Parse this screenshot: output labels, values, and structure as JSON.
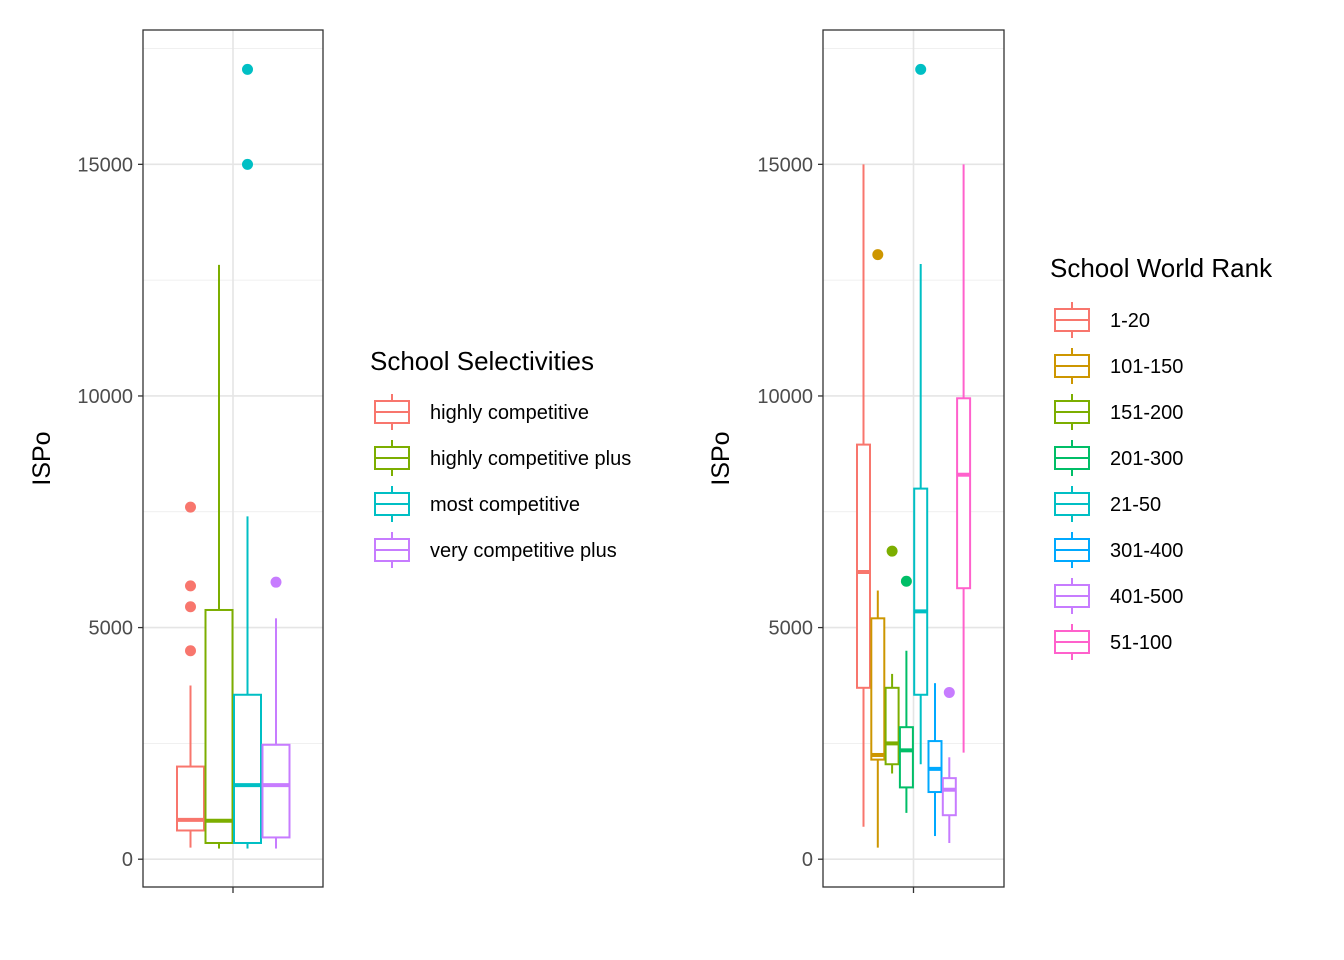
{
  "chart_data": [
    {
      "type": "boxplot",
      "ylabel": "ISPo",
      "xlabel": "",
      "ylim": [
        -600,
        17900
      ],
      "y_ticks": [
        0,
        5000,
        10000,
        15000
      ],
      "y_tick_labels": [
        "0",
        "5000",
        "10000",
        "15000"
      ],
      "grid": true,
      "legend": {
        "title": "School Selectivities",
        "position": "right",
        "entries": [
          "highly competitive",
          "highly competitive plus",
          "most competitive",
          "very competitive plus"
        ]
      },
      "series": [
        {
          "name": "highly competitive",
          "color": "#F8766D",
          "min": 250,
          "q1": 620,
          "median": 850,
          "q3": 2000,
          "max": 3750,
          "outliers": [
            4500,
            5450,
            5900,
            7600
          ]
        },
        {
          "name": "highly competitive plus",
          "color": "#7CAE00",
          "min": 230,
          "q1": 350,
          "median": 830,
          "q3": 5380,
          "max": 12830,
          "outliers": []
        },
        {
          "name": "most competitive",
          "color": "#00BFC4",
          "min": 230,
          "q1": 350,
          "median": 1600,
          "q3": 3550,
          "max": 7400,
          "outliers": [
            15000,
            17050
          ]
        },
        {
          "name": "very competitive plus",
          "color": "#C77CFF",
          "min": 230,
          "q1": 470,
          "median": 1600,
          "q3": 2470,
          "max": 5200,
          "outliers": [
            5980
          ]
        }
      ]
    },
    {
      "type": "boxplot",
      "ylabel": "ISPo",
      "xlabel": "",
      "ylim": [
        -600,
        17900
      ],
      "y_ticks": [
        0,
        5000,
        10000,
        15000
      ],
      "y_tick_labels": [
        "0",
        "5000",
        "10000",
        "15000"
      ],
      "grid": true,
      "legend": {
        "title": "School World Rank",
        "position": "right",
        "entries": [
          "1-20",
          "101-150",
          "151-200",
          "201-300",
          "21-50",
          "301-400",
          "401-500",
          "51-100"
        ]
      },
      "series": [
        {
          "name": "1-20",
          "color": "#F8766D",
          "min": 700,
          "q1": 3700,
          "median": 6200,
          "q3": 8950,
          "max": 15000,
          "outliers": []
        },
        {
          "name": "101-150",
          "color": "#CD9600",
          "min": 250,
          "q1": 2150,
          "median": 2250,
          "q3": 5200,
          "max": 5800,
          "outliers": [
            13050
          ]
        },
        {
          "name": "151-200",
          "color": "#7CAE00",
          "min": 1850,
          "q1": 2050,
          "median": 2500,
          "q3": 3700,
          "max": 4000,
          "outliers": [
            6650
          ]
        },
        {
          "name": "201-300",
          "color": "#00BE67",
          "min": 1000,
          "q1": 1550,
          "median": 2350,
          "q3": 2850,
          "max": 4500,
          "outliers": [
            6000
          ]
        },
        {
          "name": "21-50",
          "color": "#00BFC4",
          "min": 2050,
          "q1": 3550,
          "median": 5350,
          "q3": 8000,
          "max": 12850,
          "outliers": [
            17050
          ]
        },
        {
          "name": "301-400",
          "color": "#00A9FF",
          "min": 500,
          "q1": 1450,
          "median": 1950,
          "q3": 2550,
          "max": 3800,
          "outliers": []
        },
        {
          "name": "401-500",
          "color": "#C77CFF",
          "min": 350,
          "q1": 950,
          "median": 1500,
          "q3": 1750,
          "max": 2200,
          "outliers": [
            3600
          ]
        },
        {
          "name": "51-100",
          "color": "#FF61CC",
          "min": 2300,
          "q1": 5850,
          "median": 8300,
          "q3": 9950,
          "max": 15000,
          "outliers": []
        }
      ]
    }
  ]
}
